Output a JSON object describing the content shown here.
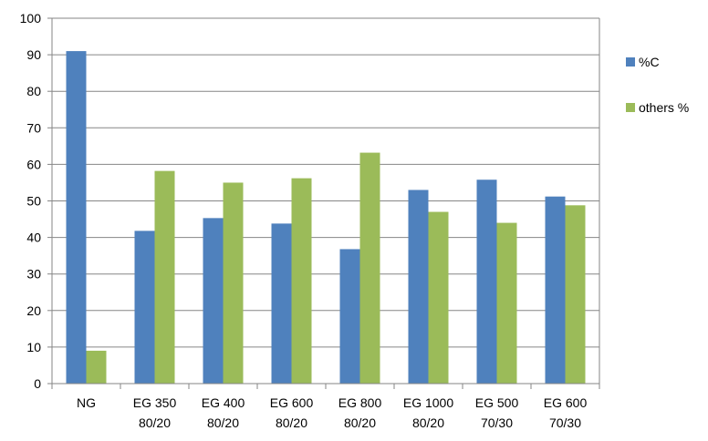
{
  "chart_data": {
    "type": "bar",
    "categories": [
      [
        "NG",
        ""
      ],
      [
        "EG 350",
        "80/20"
      ],
      [
        "EG 400",
        "80/20"
      ],
      [
        "EG 600",
        "80/20"
      ],
      [
        "EG 800",
        "80/20"
      ],
      [
        "EG 1000",
        "80/20"
      ],
      [
        "EG 500",
        "70/30"
      ],
      [
        "EG 600",
        "70/30"
      ]
    ],
    "series": [
      {
        "name": "%C",
        "color": "#4f81bd",
        "values": [
          91,
          41.8,
          45.3,
          43.8,
          36.8,
          53,
          55.8,
          51.2
        ]
      },
      {
        "name": "others %",
        "color": "#9bbb59",
        "values": [
          9,
          58.2,
          55,
          56.2,
          63.2,
          47,
          44,
          48.8
        ]
      }
    ],
    "ylim": [
      0,
      100
    ],
    "yticks": [
      0,
      10,
      20,
      30,
      40,
      50,
      60,
      70,
      80,
      90,
      100
    ],
    "grid": true,
    "legend_position": "right",
    "title": "",
    "xlabel": "",
    "ylabel": ""
  }
}
